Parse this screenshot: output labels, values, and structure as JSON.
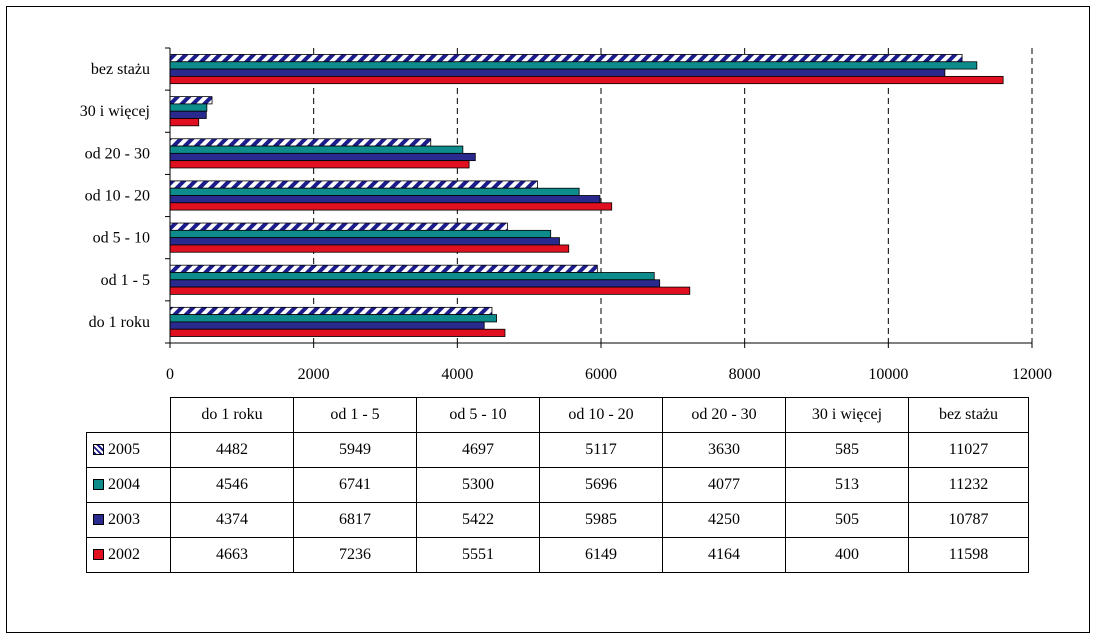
{
  "colors": {
    "2005": "#1c1c8c",
    "2004": "#0e8c8c",
    "2003": "#2a2a8e",
    "2002": "#e01020",
    "grid": "#000000"
  },
  "chart_data": {
    "type": "bar",
    "orientation": "horizontal",
    "categories": [
      "do 1 roku",
      "od 1 - 5",
      "od 5 - 10",
      "od 10 - 20",
      "od 20 - 30",
      "30 i więcej",
      "bez stażu"
    ],
    "series": [
      {
        "name": "2005",
        "values": [
          4482,
          5949,
          4697,
          5117,
          3630,
          585,
          11027
        ],
        "pattern": "hatched"
      },
      {
        "name": "2004",
        "values": [
          4546,
          6741,
          5300,
          5696,
          4077,
          513,
          11232
        ]
      },
      {
        "name": "2003",
        "values": [
          4374,
          6817,
          5422,
          5985,
          4250,
          505,
          10787
        ]
      },
      {
        "name": "2002",
        "values": [
          4663,
          7236,
          5551,
          6149,
          4164,
          400,
          11598
        ]
      }
    ],
    "xlim": [
      0,
      12000
    ],
    "x_ticks": [
      "0",
      "2000",
      "4000",
      "6000",
      "8000",
      "10000",
      "12000"
    ],
    "grid": "vertical dashed",
    "legend": "data table below chart",
    "title": "",
    "xlabel": "",
    "ylabel": ""
  }
}
